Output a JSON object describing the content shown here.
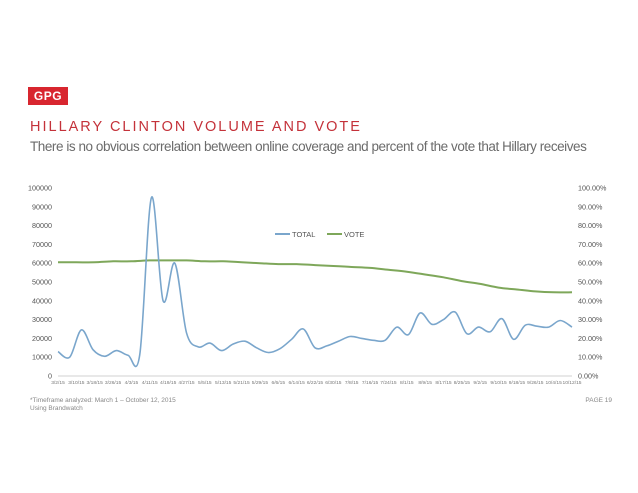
{
  "logo": "GPG",
  "title": "HILLARY CLINTON VOLUME AND VOTE",
  "subtitle": "There is no obvious correlation between online coverage and percent of the vote that Hillary receives",
  "footnote1": "*Timeframe analyzed: March 1 – October 12, 2015",
  "footnote2": "Using Brandwatch",
  "page_label": "PAGE 19",
  "colors": {
    "total": "#7aa6cc",
    "vote": "#7ea75a",
    "title": "#c4323a",
    "logo": "#d8262f"
  },
  "chart_data": {
    "type": "line",
    "title": "",
    "xlabel": "",
    "ylabel": "",
    "legend_position": "top-center",
    "grid": false,
    "ylim": [
      0,
      100000
    ],
    "y2lim": [
      0,
      1
    ],
    "y_ticks": [
      "0",
      "10000",
      "20000",
      "30000",
      "40000",
      "50000",
      "60000",
      "70000",
      "80000",
      "90000",
      "100000"
    ],
    "y2_ticks": [
      "0.00%",
      "10.00%",
      "20.00%",
      "30.00%",
      "40.00%",
      "50.00%",
      "60.00%",
      "70.00%",
      "80.00%",
      "90.00%",
      "100.00%"
    ],
    "x_tick_labels": [
      "3/2/15",
      "3/10/15",
      "3/18/15",
      "3/26/15",
      "4/3/15",
      "4/11/15",
      "4/19/15",
      "4/27/15",
      "5/5/15",
      "5/13/15",
      "5/21/15",
      "5/29/15",
      "6/6/15",
      "6/14/15",
      "6/22/15",
      "6/30/15",
      "7/8/15",
      "7/16/15",
      "7/24/15",
      "8/1/15",
      "8/9/15",
      "8/17/15",
      "8/25/15",
      "9/2/15",
      "9/10/15",
      "9/18/15",
      "9/26/15",
      "10/4/15",
      "10/12/15"
    ],
    "series": [
      {
        "name": "TOTAL",
        "axis": "left",
        "values": [
          13000,
          10000,
          24500,
          14000,
          10500,
          13500,
          11000,
          11500,
          95000,
          40000,
          60000,
          23000,
          15500,
          17500,
          13500,
          17000,
          18500,
          15000,
          12500,
          14500,
          19500,
          25000,
          15000,
          16000,
          18500,
          21000,
          20000,
          19000,
          19000,
          26000,
          22000,
          33500,
          27500,
          30000,
          34000,
          22500,
          26000,
          23500,
          30500,
          19500,
          27000,
          26500,
          26000,
          29500,
          26000
        ]
      },
      {
        "name": "VOTE",
        "axis": "right",
        "values": [
          0.605,
          0.605,
          0.605,
          0.61,
          0.61,
          0.615,
          0.615,
          0.615,
          0.61,
          0.61,
          0.605,
          0.6,
          0.595,
          0.595,
          0.59,
          0.585,
          0.58,
          0.575,
          0.565,
          0.555,
          0.54,
          0.525,
          0.505,
          0.49,
          0.47,
          0.46,
          0.45,
          0.445,
          0.445
        ]
      }
    ]
  }
}
